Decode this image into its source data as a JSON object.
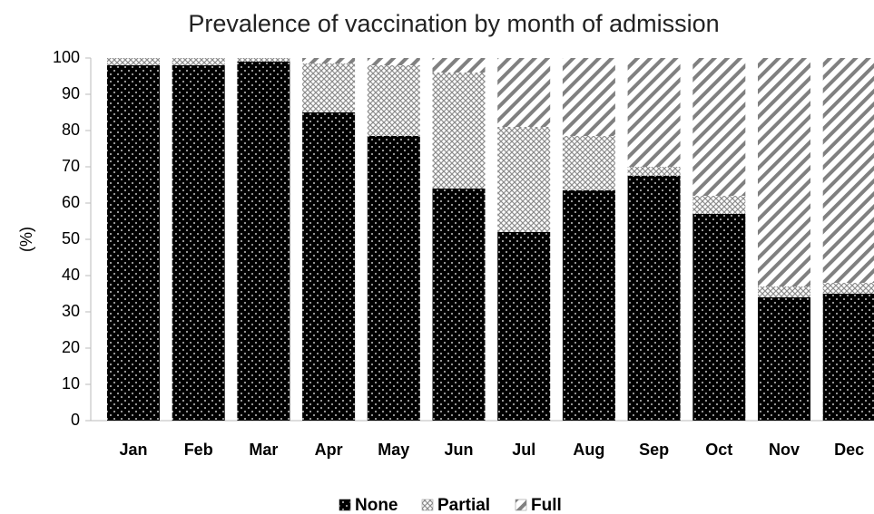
{
  "chart_data": {
    "type": "stacked_bar",
    "title": "Prevalence of vaccination by month of admission",
    "y_label": "(%)",
    "categories": [
      "Jan",
      "Feb",
      "Mar",
      "Apr",
      "May",
      "Jun",
      "Jul",
      "Aug",
      "Sep",
      "Oct",
      "Nov",
      "Dec"
    ],
    "series": [
      {
        "name": "None",
        "color": "#000000",
        "values": [
          98,
          98,
          99,
          85,
          78.5,
          64,
          52,
          63.5,
          67.5,
          57,
          34,
          35
        ]
      },
      {
        "name": "Partial",
        "color": "#8c8c8c",
        "values": [
          2,
          2,
          1,
          13.5,
          19.5,
          32,
          29,
          15,
          2.5,
          5,
          3,
          3
        ]
      },
      {
        "name": "Full",
        "color": "#808080",
        "values": [
          0,
          0,
          0,
          1.5,
          2,
          4,
          19,
          21.5,
          30,
          38,
          63,
          62
        ]
      }
    ],
    "ylim": [
      0,
      100
    ],
    "yticks": [
      0,
      10,
      20,
      30,
      40,
      50,
      60,
      70,
      80,
      90,
      100
    ],
    "legend": "bottom"
  }
}
